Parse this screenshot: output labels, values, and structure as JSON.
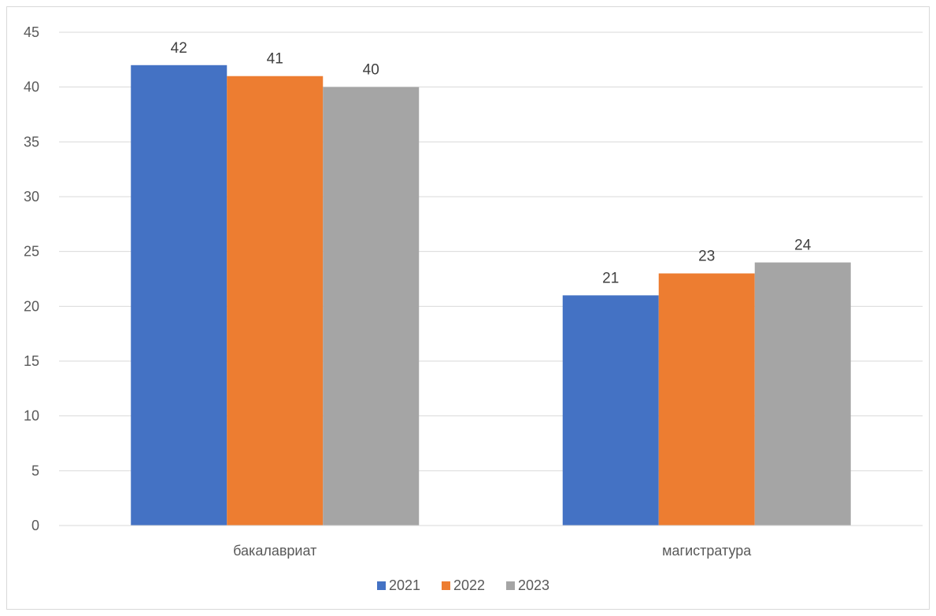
{
  "chart_data": {
    "type": "bar",
    "categories": [
      "бакалавриат",
      "магистратура"
    ],
    "series": [
      {
        "name": "2021",
        "values": [
          42,
          21
        ],
        "color": "#4472C4"
      },
      {
        "name": "2022",
        "values": [
          41,
          23
        ],
        "color": "#ED7D31"
      },
      {
        "name": "2023",
        "values": [
          40,
          24
        ],
        "color": "#A5A5A5"
      }
    ],
    "title": "",
    "xlabel": "",
    "ylabel": "",
    "ylim": [
      0,
      45
    ],
    "yticks": [
      "0",
      "5",
      "10",
      "15",
      "20",
      "25",
      "30",
      "35",
      "40",
      "45"
    ],
    "grid": true,
    "legend": "bottom",
    "data_labels": true
  }
}
